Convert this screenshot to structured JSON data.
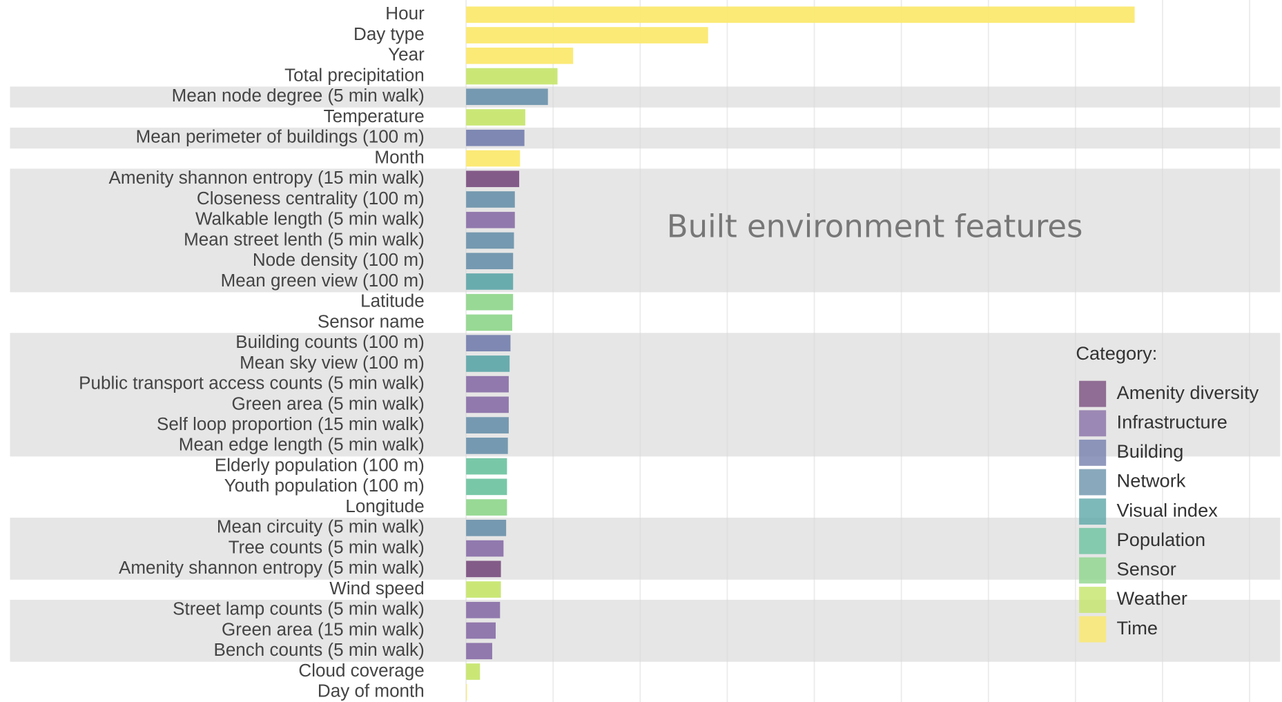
{
  "chart_data": {
    "type": "bar",
    "orientation": "horizontal",
    "annotation": "Built environment features",
    "categories": [
      "Hour",
      "Day type",
      "Year",
      "Total precipitation",
      "Mean node degree (5 min walk)",
      "Temperature",
      "Mean perimeter of buildings (100 m)",
      "Month",
      "Amenity shannon entropy (15 min walk)",
      "Closeness centrality (100 m)",
      "Walkable length (5 min walk)",
      "Mean street lenth (5 min walk)",
      "Node density (100 m)",
      "Mean green view (100 m)",
      "Latitude",
      "Sensor name",
      "Building counts (100 m)",
      "Mean sky view (100 m)",
      "Public transport access counts (5 min walk)",
      "Green area (5 min walk)",
      "Self loop proportion (15 min walk)",
      "Mean edge length (5 min walk)",
      "Elderly population (100 m)",
      "Youth population (100 m)",
      "Longitude",
      "Mean circuity (5 min walk)",
      "Tree counts (5 min walk)",
      "Amenity shannon entropy (5 min walk)",
      "Wind speed",
      "Street lamp counts (5 min walk)",
      "Green area (15 min walk)",
      "Bench counts (5 min walk)",
      "Cloud coverage",
      "Day of month"
    ],
    "values": [
      7.68,
      2.78,
      1.23,
      1.05,
      0.94,
      0.68,
      0.67,
      0.62,
      0.61,
      0.56,
      0.56,
      0.55,
      0.54,
      0.54,
      0.54,
      0.53,
      0.51,
      0.5,
      0.49,
      0.49,
      0.49,
      0.48,
      0.47,
      0.47,
      0.47,
      0.46,
      0.43,
      0.4,
      0.4,
      0.39,
      0.34,
      0.3,
      0.16,
      0.01
    ],
    "groups": [
      8,
      8,
      8,
      7,
      3,
      7,
      2,
      8,
      0,
      3,
      1,
      3,
      3,
      4,
      6,
      6,
      2,
      4,
      1,
      1,
      3,
      3,
      5,
      5,
      6,
      3,
      1,
      0,
      7,
      1,
      1,
      1,
      7,
      8
    ],
    "xlim": [
      0,
      9.37
    ],
    "xticks": [
      0,
      1,
      2,
      3,
      4,
      5,
      6,
      7,
      8,
      9
    ],
    "grid": true,
    "legend": {
      "title": "Category:",
      "position": "right",
      "items": [
        {
          "name": "Amenity diversity",
          "color": "#7b4f80",
          "shaded": true
        },
        {
          "name": "Infrastructure",
          "color": "#8a70a8",
          "shaded": true
        },
        {
          "name": "Building",
          "color": "#7580ae",
          "shaded": true
        },
        {
          "name": "Network",
          "color": "#6b92ab",
          "shaded": true
        },
        {
          "name": "Visual index",
          "color": "#5ea7a9",
          "shaded": true
        },
        {
          "name": "Population",
          "color": "#6cc3a0",
          "shaded": false
        },
        {
          "name": "Sensor",
          "color": "#8fd68c",
          "shaded": false
        },
        {
          "name": "Weather",
          "color": "#c5e56a",
          "shaded": false
        },
        {
          "name": "Time",
          "color": "#fbe86a",
          "shaded": false
        }
      ]
    }
  }
}
